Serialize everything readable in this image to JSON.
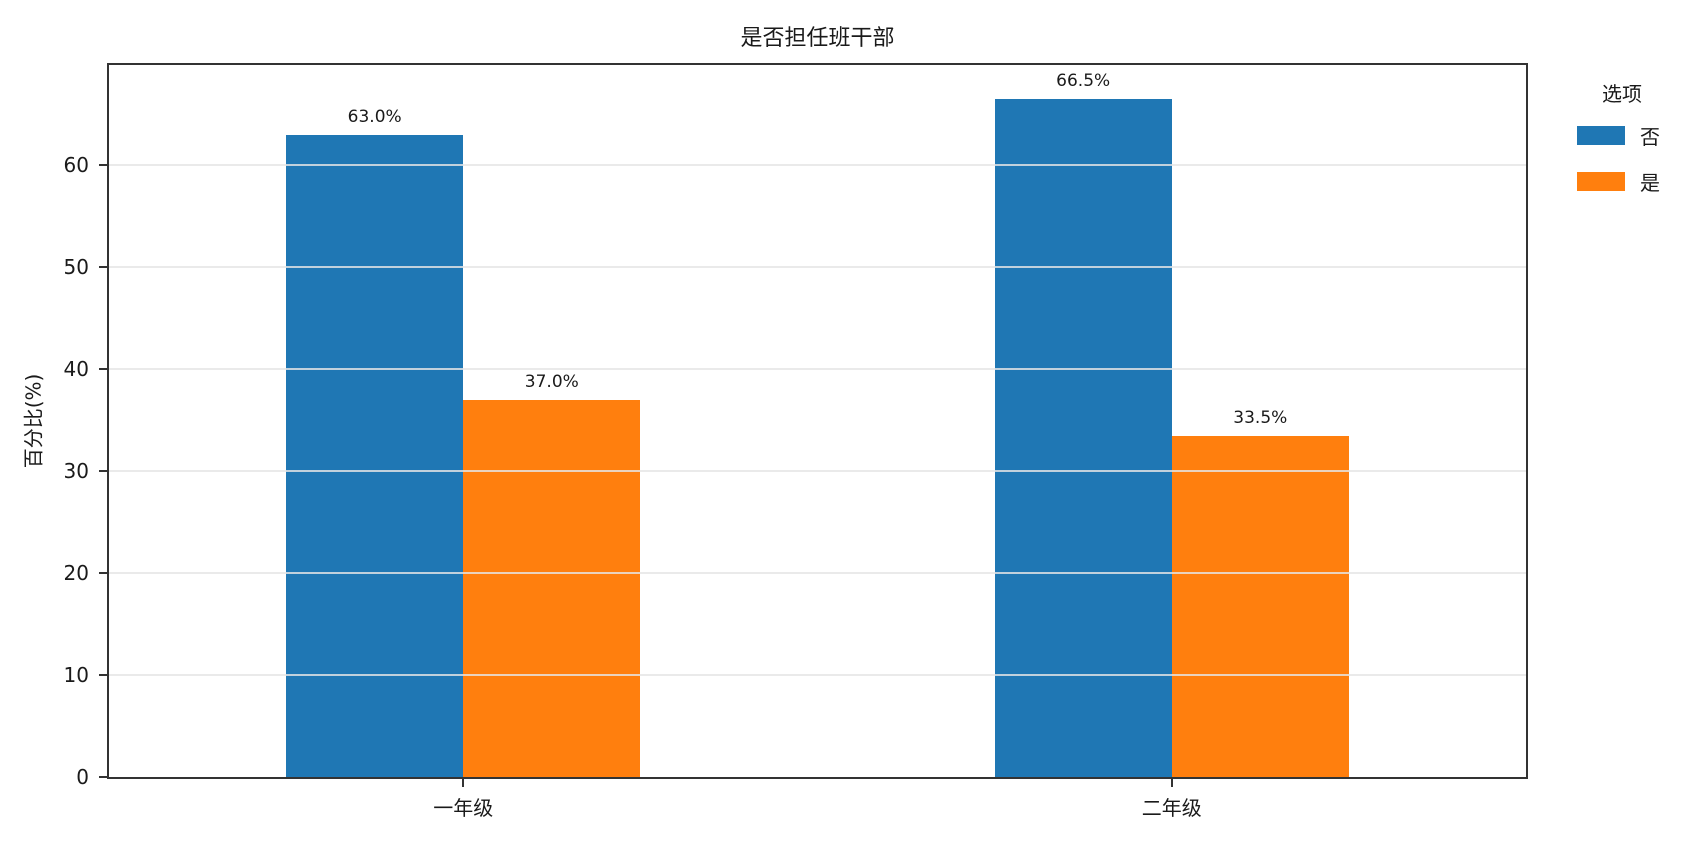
{
  "title": "是否担任班干部",
  "y_axis_label": "百分比(%)",
  "legend": {
    "title": "选项",
    "items": [
      {
        "label": "否",
        "color": "#1f77b4"
      },
      {
        "label": "是",
        "color": "#ff7f0e"
      }
    ]
  },
  "chart_data": {
    "type": "bar",
    "title": "是否担任班干部",
    "xlabel": "",
    "ylabel": "百分比(%)",
    "categories": [
      "一年级",
      "二年级"
    ],
    "series": [
      {
        "name": "否",
        "color": "#1f77b4",
        "values": [
          63.0,
          66.5
        ],
        "labels": [
          "63.0%",
          "66.5%"
        ]
      },
      {
        "name": "是",
        "color": "#ff7f0e",
        "values": [
          37.0,
          33.5
        ],
        "labels": [
          "37.0%",
          "33.5%"
        ]
      }
    ],
    "yticks": [
      0,
      10,
      20,
      30,
      40,
      50,
      60
    ],
    "ylim": [
      0,
      69.85
    ],
    "grid": true,
    "grid_color": "#e5e5e5",
    "grid_above_bars": true,
    "legend_title": "选项",
    "legend_position": "outside-right",
    "spine_color": "#333333"
  }
}
